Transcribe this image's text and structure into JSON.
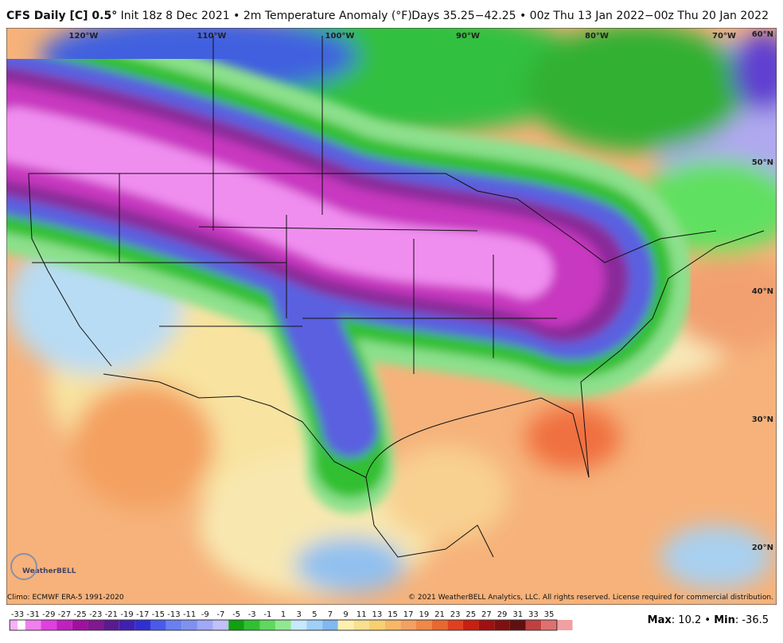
{
  "header": {
    "model": "CFS Daily [C] 0.5°",
    "init": "Init 18z 8 Dec 2021",
    "field": "2m Temperature Anomaly (°F)",
    "period": "Days 35.25−42.25 • 00z Thu 13 Jan 2022−00z Thu 20 Jan 2022"
  },
  "map": {
    "longitude_labels": [
      "120°W",
      "110°W",
      "100°W",
      "90°W",
      "80°W",
      "70°W"
    ],
    "latitude_labels": [
      "60°N",
      "50°N",
      "40°N",
      "30°N",
      "20°N"
    ]
  },
  "footer": {
    "climo": "Climo: ECMWF ERA-5 1991-2020",
    "copyright": "© 2021 WeatherBELL Analytics, LLC. All rights reserved. License required for commercial distribution.",
    "logo": "WeatherBELL",
    "max_label": "Max",
    "max_value": "10.2",
    "min_label": "Min",
    "min_value": "-36.5"
  },
  "colorbar": {
    "ticks": [
      -33,
      -31,
      -29,
      -27,
      -25,
      -23,
      -21,
      -19,
      -17,
      -15,
      -13,
      -11,
      -9,
      -7,
      -5,
      -3,
      -1,
      1,
      3,
      5,
      7,
      9,
      11,
      13,
      15,
      17,
      19,
      21,
      23,
      25,
      27,
      29,
      31,
      33,
      35
    ]
  }
}
